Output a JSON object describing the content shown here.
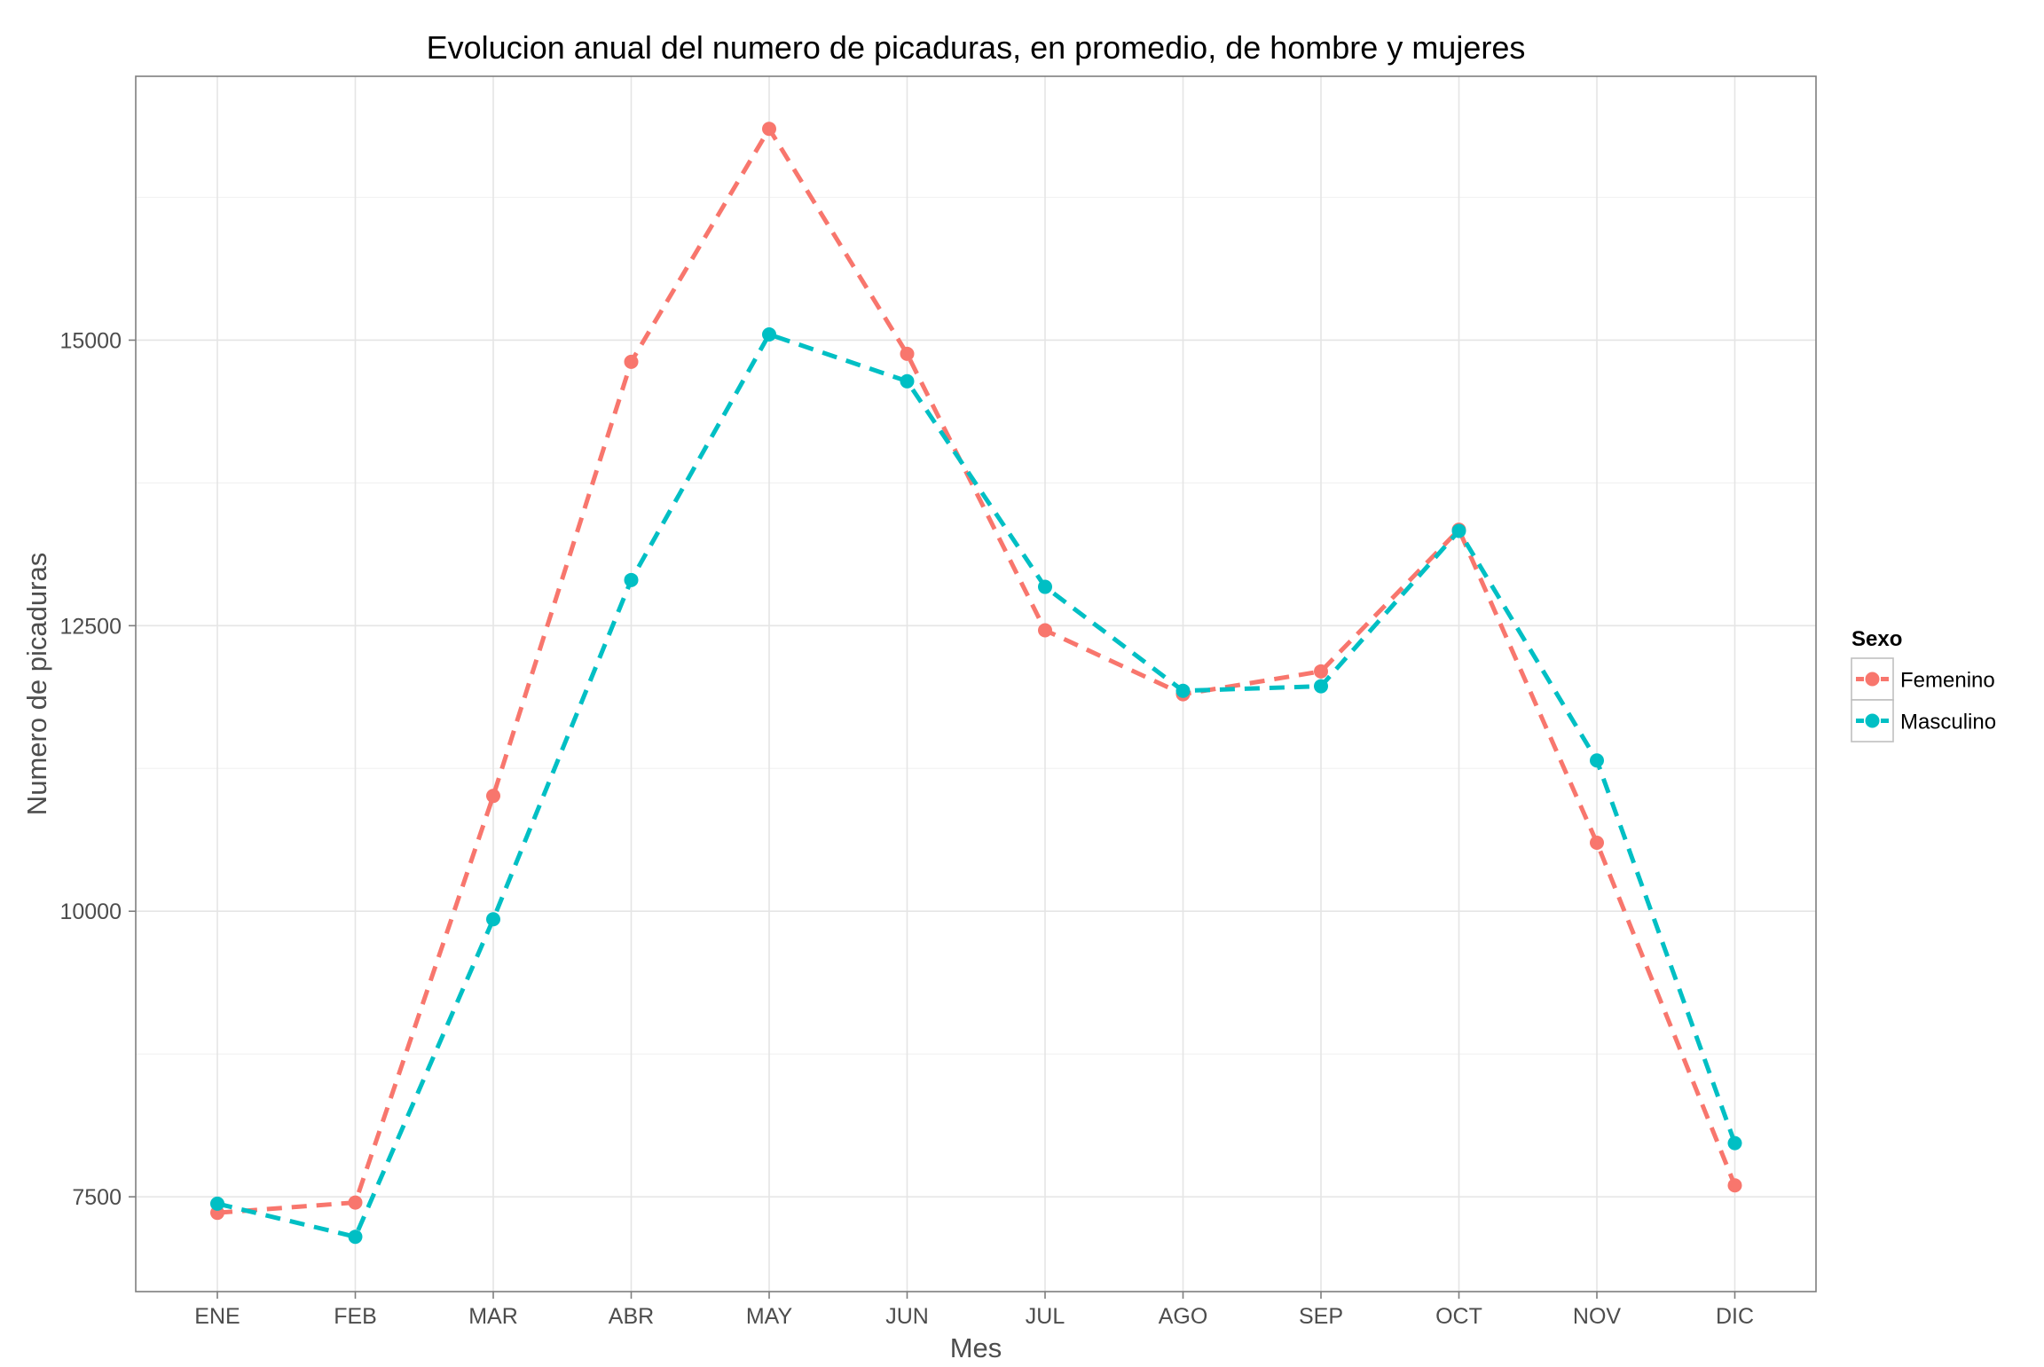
{
  "chart_data": {
    "type": "line",
    "title": "Evolucion anual del numero de picaduras, en promedio, de hombre y mujeres",
    "xlabel": "Mes",
    "ylabel": "Numero de picaduras",
    "categories": [
      "ENE",
      "FEB",
      "MAR",
      "ABR",
      "MAY",
      "JUN",
      "JUL",
      "AGO",
      "SEP",
      "OCT",
      "NOV",
      "DIC"
    ],
    "yticks": [
      7500,
      10000,
      12500,
      15000
    ],
    "ytick_labels": [
      "7500",
      "10000",
      "12500",
      "15000"
    ],
    "ylim": [
      6670,
      17310
    ],
    "grid": true,
    "legend": {
      "title": "Sexo",
      "placement": "right"
    },
    "series": [
      {
        "name": "Femenino",
        "color": "#F8766D",
        "line_style": "dashed",
        "values": [
          7360,
          7450,
          11010,
          14810,
          16850,
          14880,
          12460,
          11900,
          12100,
          13340,
          10600,
          7600
        ]
      },
      {
        "name": "Masculino",
        "color": "#00BFC4",
        "line_style": "dashed",
        "values": [
          7440,
          7150,
          9930,
          12900,
          15050,
          14640,
          12840,
          11930,
          11970,
          13330,
          11320,
          7970
        ]
      }
    ]
  }
}
